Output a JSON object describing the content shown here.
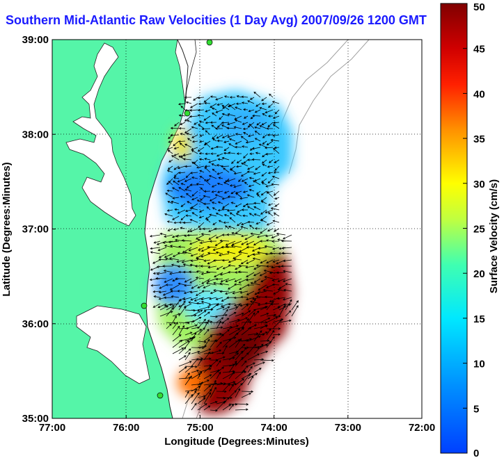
{
  "title": "Southern Mid-Atlantic Raw Velocities (1 Day Avg) 2007/09/26 1200 GMT",
  "map": {
    "xlabel": "Longitude (Degrees:Minutes)",
    "ylabel": "Latitude (Degrees:Minutes)",
    "x_ticks": [
      "77:00",
      "76:00",
      "75:00",
      "74:00",
      "73:00",
      "72:00"
    ],
    "y_ticks": [
      "39:00",
      "38:00",
      "37:00",
      "36:00",
      "35:00"
    ],
    "lon_range": [
      -77,
      -72
    ],
    "lat_range": [
      35,
      39
    ],
    "grid": true
  },
  "colorbar": {
    "label": "Surface Velocity (cm/s)",
    "ticks": [
      "50",
      "45",
      "40",
      "35",
      "30",
      "25",
      "20",
      "15",
      "10",
      "5",
      "0"
    ],
    "range": [
      0,
      50
    ],
    "colormap": "jet"
  },
  "colors": {
    "land": "#55f5a8",
    "water": "#ffffff",
    "title": "#1a1aff",
    "station": "#33dd33"
  },
  "chart_data": {
    "type": "heatmap",
    "title": "Southern Mid-Atlantic Raw Velocities (1 Day Avg) 2007/09/26 1200 GMT",
    "xlabel": "Longitude (Degrees:Minutes)",
    "ylabel": "Latitude (Degrees:Minutes)",
    "xlim": [
      -77,
      -72
    ],
    "ylim": [
      35,
      39
    ],
    "zlabel": "Surface Velocity (cm/s)",
    "zlim": [
      0,
      50
    ],
    "regions": [
      {
        "lon": -74.9,
        "lat": 38.2,
        "speed": 10
      },
      {
        "lon": -74.5,
        "lat": 38.1,
        "speed": 8
      },
      {
        "lon": -74.1,
        "lat": 37.9,
        "speed": 10
      },
      {
        "lon": -75.3,
        "lat": 37.8,
        "speed": 18
      },
      {
        "lon": -74.8,
        "lat": 37.5,
        "speed": 5
      },
      {
        "lon": -74.4,
        "lat": 37.4,
        "speed": 6
      },
      {
        "lon": -75.1,
        "lat": 37.1,
        "speed": 12
      },
      {
        "lon": -75.2,
        "lat": 36.8,
        "speed": 22
      },
      {
        "lon": -74.6,
        "lat": 36.8,
        "speed": 23
      },
      {
        "lon": -74.1,
        "lat": 36.7,
        "speed": 28
      },
      {
        "lon": -75.4,
        "lat": 36.2,
        "speed": 5
      },
      {
        "lon": -74.9,
        "lat": 36.2,
        "speed": 15
      },
      {
        "lon": -74.2,
        "lat": 36.0,
        "speed": 50
      },
      {
        "lon": -74.5,
        "lat": 35.5,
        "speed": 50
      },
      {
        "lon": -75.1,
        "lat": 35.5,
        "speed": 28
      }
    ],
    "stations": [
      {
        "lon": -75.1,
        "lat": 38.98
      },
      {
        "lon": -75.09,
        "lat": 38.34
      },
      {
        "lon": -75.7,
        "lat": 36.2
      },
      {
        "lon": -75.5,
        "lat": 35.27
      }
    ]
  }
}
